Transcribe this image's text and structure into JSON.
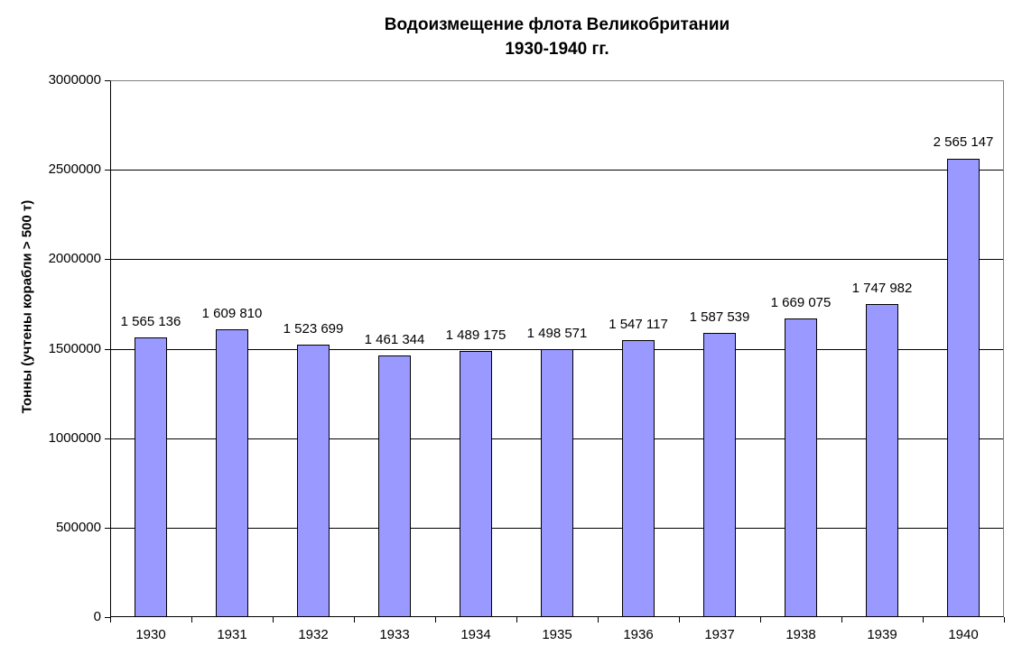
{
  "title": {
    "line1": "Водоизмещение флота Великобритании",
    "line2": "1930-1940 гг."
  },
  "chart_data": {
    "type": "bar",
    "title": "Водоизмещение флота Великобритании 1930-1940 гг.",
    "xlabel": "",
    "ylabel": "Тонны (учтены корабли > 500 т)",
    "categories": [
      "1930",
      "1931",
      "1932",
      "1933",
      "1934",
      "1935",
      "1936",
      "1937",
      "1938",
      "1939",
      "1940"
    ],
    "values": [
      1565136,
      1609810,
      1523699,
      1461344,
      1489175,
      1498571,
      1547117,
      1587539,
      1669075,
      1747982,
      2565147
    ],
    "value_labels": [
      "1 565 136",
      "1 609 810",
      "1 523 699",
      "1 461 344",
      "1 489 175",
      "1 498 571",
      "1 547 117",
      "1 587 539",
      "1 669 075",
      "1 747 982",
      "2 565 147"
    ],
    "ylim": [
      0,
      3000000
    ],
    "ytick_interval": 500000,
    "ytick_labels": [
      "0",
      "500000",
      "1000000",
      "1500000",
      "2000000",
      "2500000",
      "3000000"
    ],
    "grid": "horizontal-major",
    "legend": "none",
    "colors": {
      "bar_fill": "#9999FF",
      "bar_border": "#000000",
      "gridline": "#000000",
      "axis_line": "#000000",
      "plot_border": "#808080",
      "text": "#000000",
      "background": "#FFFFFF"
    }
  }
}
